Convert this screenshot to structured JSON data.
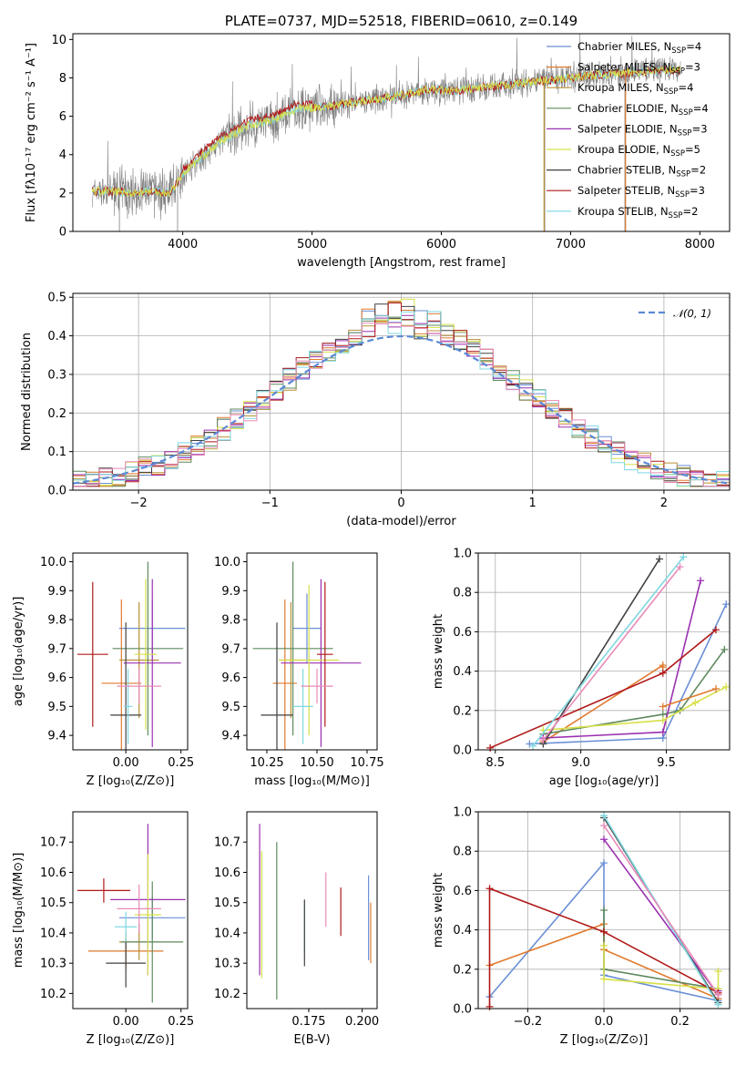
{
  "series_colors": [
    "#6a8fd6",
    "#e07a2e",
    "#b89035",
    "#5f8a5f",
    "#9b30b0",
    "#d7e04a",
    "#404040",
    "#b01818",
    "#7fd8e0"
  ],
  "extra_colors": {
    "pink": "#e88ab8",
    "gray": "#808080",
    "norm": "#5b8ad6"
  },
  "chart_data": [
    {
      "id": "spectrum",
      "type": "line",
      "title": "PLATE=0737, MJD=52518, FIBERID=0610, z=0.149",
      "xlabel": "wavelength [Angstrom, rest frame]",
      "ylabel": "Flux [fλ10⁻¹⁷ erg cm⁻² s⁻¹ A⁻¹]",
      "xlim": [
        3150,
        8230
      ],
      "ylim": [
        0,
        10.3
      ],
      "xticks": [
        4000,
        5000,
        6000,
        7000,
        8000
      ],
      "yticks": [
        0,
        2,
        4,
        6,
        8,
        10
      ],
      "data_envelope": {
        "x": [
          3300,
          3450,
          3600,
          3750,
          3900,
          4000,
          4150,
          4300,
          4500,
          4700,
          4900,
          5100,
          5300,
          5500,
          5700,
          5900,
          6100,
          6300,
          6500,
          6700,
          6900,
          7100,
          7300,
          7500,
          7700,
          7850
        ],
        "y": [
          2.1,
          2.1,
          2.0,
          2.1,
          2.0,
          3.0,
          3.9,
          4.7,
          5.5,
          5.8,
          6.4,
          6.5,
          6.7,
          6.9,
          7.1,
          7.4,
          7.3,
          7.5,
          7.6,
          7.8,
          7.9,
          8.1,
          8.2,
          8.3,
          8.4,
          8.4
        ]
      },
      "legend": [
        {
          "model": "Chabrier MILES",
          "n": "4"
        },
        {
          "model": "Salpeter MILES",
          "n": "3"
        },
        {
          "model": "Kroupa MILES",
          "n": "4"
        },
        {
          "model": "Chabrier ELODIE",
          "n": "4"
        },
        {
          "model": "Salpeter ELODIE",
          "n": "3"
        },
        {
          "model": "Kroupa ELODIE",
          "n": "5"
        },
        {
          "model": "Chabrier STELIB",
          "n": "2"
        },
        {
          "model": "Salpeter STELIB",
          "n": "3"
        },
        {
          "model": "Kroupa STELIB",
          "n": "2"
        }
      ],
      "legend_prefix": "N",
      "legend_sub": "SSP",
      "legend_placement": "upper right",
      "grid": false
    },
    {
      "id": "residuals",
      "type": "histogram",
      "xlabel": "(data-model)/error",
      "ylabel": "Normed distribution",
      "xlim": [
        -2.5,
        2.5
      ],
      "ylim": [
        0,
        0.51
      ],
      "xticks": [
        -2,
        -1,
        0,
        1,
        2
      ],
      "yticks": [
        0.0,
        0.1,
        0.2,
        0.3,
        0.4,
        0.5
      ],
      "bin_width": 0.1,
      "reference_curve": "N(0,1)",
      "legend_label": "𝒩(0, 1)",
      "legend_placement": "upper right",
      "grid": true
    },
    {
      "id": "age_vs_Z",
      "type": "errorbar",
      "xlabel": "Z [log₁₀(Z/Z⊙)]",
      "ylabel": "age  [log₁₀(age/yr)]",
      "xlim": [
        -0.24,
        0.28
      ],
      "ylim": [
        9.35,
        10.03
      ],
      "xticks": [
        0.0,
        0.25
      ],
      "yticks": [
        9.4,
        9.5,
        9.6,
        9.7,
        9.8,
        9.9,
        10.0
      ],
      "points": [
        {
          "x": 0.12,
          "xerr": 0.15,
          "y": 9.77,
          "yerr": 0.1,
          "c": 0
        },
        {
          "x": -0.02,
          "xerr": 0.09,
          "y": 9.58,
          "yerr": 0.29,
          "c": 1
        },
        {
          "x": 0.06,
          "xerr": 0.09,
          "y": 9.66,
          "yerr": 0.2,
          "c": 2
        },
        {
          "x": 0.1,
          "xerr": 0.16,
          "y": 9.7,
          "yerr": 0.3,
          "c": 3
        },
        {
          "x": 0.12,
          "xerr": 0.13,
          "y": 9.65,
          "yerr": 0.29,
          "c": 4
        },
        {
          "x": 0.09,
          "xerr": 0.05,
          "y": 9.68,
          "yerr": 0.26,
          "c": 5
        },
        {
          "x": 0.0,
          "xerr": 0.07,
          "y": 9.47,
          "yerr": 0.32,
          "c": 6
        },
        {
          "x": -0.15,
          "xerr": 0.07,
          "y": 9.68,
          "yerr": 0.25,
          "c": 7
        },
        {
          "x": 0.01,
          "xerr": 0.02,
          "y": 9.5,
          "yerr": 0.13,
          "c": 8
        },
        {
          "x": 0.06,
          "xerr": 0.1,
          "y": 9.57,
          "yerr": 0.06,
          "c": "pink"
        }
      ],
      "grid": false
    },
    {
      "id": "age_vs_mass",
      "type": "errorbar",
      "xlabel": "mass [log₁₀(M/M⊙)]",
      "ylabel": "",
      "xlim": [
        10.15,
        10.8
      ],
      "ylim": [
        9.35,
        10.03
      ],
      "xticks": [
        10.25,
        10.5,
        10.75
      ],
      "yticks": [
        9.4,
        9.5,
        9.6,
        9.7,
        9.8,
        9.9,
        10.0
      ],
      "points": [
        {
          "x": 10.45,
          "xerr": 0.07,
          "y": 9.77,
          "yerr": 0.12,
          "c": 0
        },
        {
          "x": 10.34,
          "xerr": 0.06,
          "y": 9.58,
          "yerr": 0.29,
          "c": 1
        },
        {
          "x": 10.37,
          "xerr": 0.06,
          "y": 9.66,
          "yerr": 0.2,
          "c": 2
        },
        {
          "x": 10.38,
          "xerr": 0.2,
          "y": 9.7,
          "yerr": 0.3,
          "c": 3
        },
        {
          "x": 10.52,
          "xerr": 0.2,
          "y": 9.65,
          "yerr": 0.29,
          "c": 4
        },
        {
          "x": 10.46,
          "xerr": 0.15,
          "y": 9.66,
          "yerr": 0.26,
          "c": 5
        },
        {
          "x": 10.3,
          "xerr": 0.08,
          "y": 9.47,
          "yerr": 0.32,
          "c": 6
        },
        {
          "x": 10.54,
          "xerr": 0.04,
          "y": 9.68,
          "yerr": 0.25,
          "c": 7
        },
        {
          "x": 10.43,
          "xerr": 0.05,
          "y": 9.5,
          "yerr": 0.13,
          "c": 8
        },
        {
          "x": 10.5,
          "xerr": 0.08,
          "y": 9.57,
          "yerr": 0.06,
          "c": "pink"
        }
      ],
      "grid": false
    },
    {
      "id": "mass_weight_vs_age",
      "type": "line",
      "xlabel": "age  [log₁₀(age/yr)]",
      "ylabel": "mass weight",
      "xlim": [
        8.4,
        9.87
      ],
      "ylim": [
        0,
        1.0
      ],
      "xticks": [
        8.5,
        9.0,
        9.5
      ],
      "yticks": [
        0.0,
        0.2,
        0.4,
        0.6,
        0.8,
        1.0
      ],
      "series": [
        {
          "c": 0,
          "x": [
            8.7,
            9.48,
            9.85
          ],
          "y": [
            0.03,
            0.06,
            0.74
          ]
        },
        {
          "c": 1,
          "x": [
            8.78,
            9.48,
            9.48
          ],
          "y": [
            0.04,
            0.43,
            0.42
          ]
        },
        {
          "c": 3,
          "x": [
            8.78,
            9.48,
            9.58,
            9.84
          ],
          "y": [
            0.08,
            0.18,
            0.2,
            0.51
          ]
        },
        {
          "c": 4,
          "x": [
            8.78,
            9.48,
            9.7
          ],
          "y": [
            0.06,
            0.09,
            0.86
          ]
        },
        {
          "c": 5,
          "x": [
            8.78,
            9.48,
            9.67,
            9.85
          ],
          "y": [
            0.1,
            0.15,
            0.24,
            0.32
          ]
        },
        {
          "c": 6,
          "x": [
            8.78,
            9.46
          ],
          "y": [
            0.03,
            0.97
          ]
        },
        {
          "c": 7,
          "x": [
            8.47,
            9.48,
            9.79
          ],
          "y": [
            0.01,
            0.39,
            0.61
          ]
        },
        {
          "c": 8,
          "x": [
            8.72,
            9.6
          ],
          "y": [
            0.02,
            0.98
          ]
        },
        {
          "c": "pink",
          "x": [
            8.78,
            9.58
          ],
          "y": [
            0.05,
            0.93
          ]
        },
        {
          "c": 1,
          "x": [
            9.48,
            9.79
          ],
          "y": [
            0.22,
            0.31
          ]
        }
      ],
      "grid": true
    },
    {
      "id": "mass_vs_Z",
      "type": "errorbar",
      "xlabel": "Z [log₁₀(Z/Z⊙)]",
      "ylabel": "mass [log₁₀(M/M⊙)]",
      "xlim": [
        -0.24,
        0.28
      ],
      "ylim": [
        10.15,
        10.8
      ],
      "xticks": [
        0.0,
        0.25
      ],
      "yticks": [
        10.2,
        10.3,
        10.4,
        10.5,
        10.6,
        10.7
      ],
      "points": [
        {
          "x": 0.12,
          "xerr": 0.15,
          "y": 10.45,
          "yerr": 0.07,
          "c": 0
        },
        {
          "x": 0.0,
          "xerr": 0.17,
          "y": 10.34,
          "yerr": 0.06,
          "c": 1
        },
        {
          "x": 0.06,
          "xerr": 0.09,
          "y": 10.37,
          "yerr": 0.06,
          "c": 2
        },
        {
          "x": 0.12,
          "xerr": 0.14,
          "y": 10.37,
          "yerr": 0.2,
          "c": 3
        },
        {
          "x": 0.1,
          "xerr": 0.17,
          "y": 10.51,
          "yerr": 0.25,
          "c": 4
        },
        {
          "x": 0.1,
          "xerr": 0.06,
          "y": 10.46,
          "yerr": 0.2,
          "c": 5
        },
        {
          "x": 0.0,
          "xerr": 0.09,
          "y": 10.3,
          "yerr": 0.08,
          "c": 6
        },
        {
          "x": -0.1,
          "xerr": 0.12,
          "y": 10.54,
          "yerr": 0.04,
          "c": 7
        },
        {
          "x": 0.0,
          "xerr": 0.05,
          "y": 10.42,
          "yerr": 0.05,
          "c": 8
        },
        {
          "x": 0.06,
          "xerr": 0.1,
          "y": 10.48,
          "yerr": 0.08,
          "c": "pink"
        }
      ],
      "grid": false
    },
    {
      "id": "mass_vs_EBV",
      "type": "errorbar",
      "xlabel": "E(B-V)",
      "ylabel": "",
      "xlim": [
        0.146,
        0.207
      ],
      "ylim": [
        10.15,
        10.8
      ],
      "xticks": [
        0.175,
        0.2
      ],
      "yticks": [
        10.2,
        10.3,
        10.4,
        10.5,
        10.6,
        10.7
      ],
      "points": [
        {
          "x": 0.152,
          "y": 10.51,
          "yerr": 0.25,
          "c": 4
        },
        {
          "x": 0.153,
          "y": 10.46,
          "yerr": 0.21,
          "c": 5
        },
        {
          "x": 0.16,
          "y": 10.44,
          "yerr": 0.26,
          "c": 3
        },
        {
          "x": 0.173,
          "y": 10.42,
          "yerr": 0.09,
          "c": 8
        },
        {
          "x": 0.173,
          "y": 10.4,
          "yerr": 0.11,
          "c": 6
        },
        {
          "x": 0.183,
          "y": 10.51,
          "yerr": 0.09,
          "c": "pink"
        },
        {
          "x": 0.19,
          "y": 10.47,
          "yerr": 0.08,
          "c": 7
        },
        {
          "x": 0.203,
          "y": 10.45,
          "yerr": 0.14,
          "c": 0
        },
        {
          "x": 0.204,
          "y": 10.4,
          "yerr": 0.1,
          "c": 1
        }
      ],
      "grid": false
    },
    {
      "id": "mass_weight_vs_Z",
      "type": "line",
      "xlabel": "Z [log₁₀(Z/Z⊙)]",
      "ylabel": "mass weight",
      "xlim": [
        -0.33,
        0.33
      ],
      "ylim": [
        0,
        1.0
      ],
      "xticks": [
        -0.2,
        0.0,
        0.2
      ],
      "yticks": [
        0.0,
        0.2,
        0.4,
        0.6,
        0.8,
        1.0
      ],
      "series": [
        {
          "c": 0,
          "x": [
            -0.3,
            0.0,
            0.0,
            0.3
          ],
          "y": [
            0.06,
            0.74,
            0.17,
            0.04
          ]
        },
        {
          "c": 1,
          "x": [
            -0.3,
            0.0,
            0.0,
            0.3
          ],
          "y": [
            0.22,
            0.43,
            0.3,
            0.05
          ]
        },
        {
          "c": 3,
          "x": [
            0.0,
            0.0,
            0.3
          ],
          "y": [
            0.5,
            0.2,
            0.1
          ]
        },
        {
          "c": 4,
          "x": [
            0.0,
            0.3,
            0.3
          ],
          "y": [
            0.86,
            0.07,
            0.09
          ]
        },
        {
          "c": 5,
          "x": [
            0.0,
            0.0,
            0.3,
            0.3
          ],
          "y": [
            0.32,
            0.15,
            0.1,
            0.19
          ]
        },
        {
          "c": 6,
          "x": [
            0.0,
            0.3
          ],
          "y": [
            0.97,
            0.03
          ]
        },
        {
          "c": 7,
          "x": [
            -0.3,
            -0.3,
            0.0,
            0.3
          ],
          "y": [
            0.01,
            0.61,
            0.39,
            0.08
          ]
        },
        {
          "c": 8,
          "x": [
            0.0,
            0.3
          ],
          "y": [
            0.98,
            0.02
          ]
        },
        {
          "c": "pink",
          "x": [
            0.0,
            0.3
          ],
          "y": [
            0.93,
            0.07
          ]
        }
      ],
      "grid": true
    }
  ]
}
